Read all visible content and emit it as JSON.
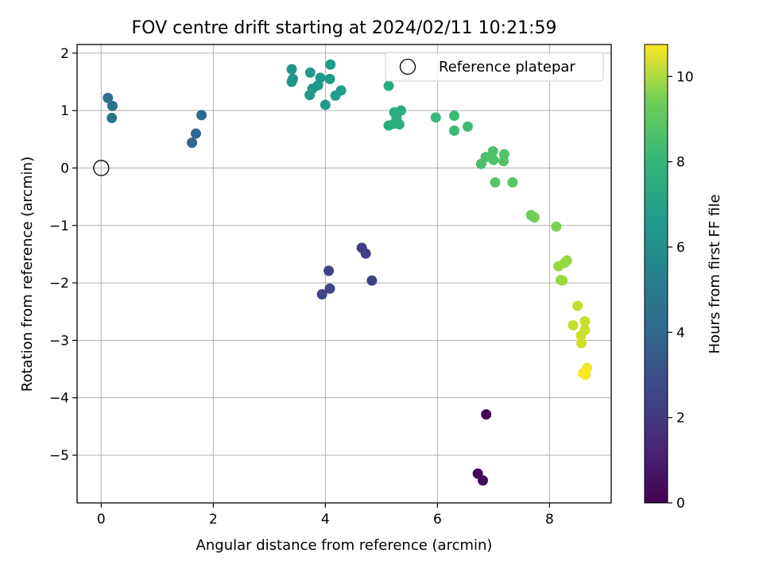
{
  "chart_data": {
    "type": "scatter",
    "title": "FOV centre drift starting at 2024/02/11 10:21:59",
    "xlabel": "Angular distance from reference (arcmin)",
    "ylabel": "Rotation from reference (arcmin)",
    "xlim": [
      -0.43,
      9.1
    ],
    "ylim": [
      -5.83,
      2.15
    ],
    "xticks": [
      0,
      2,
      4,
      6,
      8
    ],
    "yticks": [
      -5,
      -4,
      -3,
      -2,
      -1,
      0,
      1,
      2
    ],
    "x_tick_labels": [
      "0",
      "2",
      "4",
      "6",
      "8"
    ],
    "y_tick_labels": [
      "−5",
      "−4",
      "−3",
      "−2",
      "−1",
      "0",
      "1",
      "2"
    ],
    "grid": true,
    "legend": {
      "placement": "upper-right",
      "entries": [
        "Reference platepar"
      ]
    },
    "reference_point": {
      "x": 0,
      "y": 0
    },
    "colorbar": {
      "label": "Hours from first FF file",
      "colormap": "viridis",
      "range": [
        0,
        10.75
      ],
      "ticks": [
        0,
        2,
        4,
        6,
        8,
        10
      ],
      "tick_labels": [
        "0",
        "2",
        "4",
        "6",
        "8",
        "10"
      ]
    },
    "points": [
      {
        "x": 6.87,
        "y": -4.29,
        "c": 0.1
      },
      {
        "x": 6.72,
        "y": -5.32,
        "c": 0.15
      },
      {
        "x": 6.81,
        "y": -5.44,
        "c": 0.2
      },
      {
        "x": 4.65,
        "y": -1.39,
        "c": 2.0
      },
      {
        "x": 4.72,
        "y": -1.49,
        "c": 2.05
      },
      {
        "x": 4.83,
        "y": -1.96,
        "c": 2.1
      },
      {
        "x": 4.06,
        "y": -1.79,
        "c": 2.2
      },
      {
        "x": 3.94,
        "y": -2.2,
        "c": 2.25
      },
      {
        "x": 4.08,
        "y": -2.1,
        "c": 2.3
      },
      {
        "x": 1.62,
        "y": 0.44,
        "c": 3.5
      },
      {
        "x": 1.69,
        "y": 0.6,
        "c": 3.55
      },
      {
        "x": 1.79,
        "y": 0.92,
        "c": 3.6
      },
      {
        "x": 0.12,
        "y": 1.22,
        "c": 4.0
      },
      {
        "x": 0.2,
        "y": 1.08,
        "c": 4.05
      },
      {
        "x": 0.19,
        "y": 0.87,
        "c": 4.1
      },
      {
        "x": 3.4,
        "y": 1.72,
        "c": 5.6
      },
      {
        "x": 3.42,
        "y": 1.55,
        "c": 5.6
      },
      {
        "x": 3.4,
        "y": 1.5,
        "c": 5.65
      },
      {
        "x": 3.73,
        "y": 1.66,
        "c": 5.7
      },
      {
        "x": 3.77,
        "y": 1.38,
        "c": 5.7
      },
      {
        "x": 3.72,
        "y": 1.27,
        "c": 5.75
      },
      {
        "x": 3.87,
        "y": 1.44,
        "c": 5.8
      },
      {
        "x": 3.91,
        "y": 1.57,
        "c": 5.8
      },
      {
        "x": 4.09,
        "y": 1.8,
        "c": 5.9
      },
      {
        "x": 4.08,
        "y": 1.55,
        "c": 5.9
      },
      {
        "x": 4.0,
        "y": 1.1,
        "c": 5.95
      },
      {
        "x": 4.18,
        "y": 1.26,
        "c": 6.0
      },
      {
        "x": 4.28,
        "y": 1.35,
        "c": 6.05
      },
      {
        "x": 5.13,
        "y": 1.43,
        "c": 6.6
      },
      {
        "x": 5.23,
        "y": 0.97,
        "c": 6.6
      },
      {
        "x": 5.35,
        "y": 1.0,
        "c": 6.65
      },
      {
        "x": 5.13,
        "y": 0.74,
        "c": 6.7
      },
      {
        "x": 5.22,
        "y": 0.77,
        "c": 6.7
      },
      {
        "x": 5.27,
        "y": 0.88,
        "c": 6.75
      },
      {
        "x": 5.32,
        "y": 0.76,
        "c": 6.75
      },
      {
        "x": 5.97,
        "y": 0.88,
        "c": 7.2
      },
      {
        "x": 6.3,
        "y": 0.91,
        "c": 7.3
      },
      {
        "x": 6.3,
        "y": 0.65,
        "c": 7.35
      },
      {
        "x": 6.54,
        "y": 0.72,
        "c": 7.4
      },
      {
        "x": 6.78,
        "y": 0.07,
        "c": 7.6
      },
      {
        "x": 6.86,
        "y": 0.19,
        "c": 7.65
      },
      {
        "x": 6.99,
        "y": 0.29,
        "c": 7.7
      },
      {
        "x": 7.0,
        "y": 0.14,
        "c": 7.7
      },
      {
        "x": 7.19,
        "y": 0.24,
        "c": 7.8
      },
      {
        "x": 7.18,
        "y": 0.12,
        "c": 7.8
      },
      {
        "x": 7.03,
        "y": -0.25,
        "c": 7.85
      },
      {
        "x": 7.34,
        "y": -0.25,
        "c": 7.9
      },
      {
        "x": 7.67,
        "y": -0.82,
        "c": 8.3
      },
      {
        "x": 7.73,
        "y": -0.86,
        "c": 8.35
      },
      {
        "x": 8.12,
        "y": -1.02,
        "c": 8.6
      },
      {
        "x": 8.31,
        "y": -1.61,
        "c": 9.0
      },
      {
        "x": 8.27,
        "y": -1.65,
        "c": 9.0
      },
      {
        "x": 8.16,
        "y": -1.71,
        "c": 9.05
      },
      {
        "x": 8.2,
        "y": -1.95,
        "c": 9.1
      },
      {
        "x": 8.23,
        "y": -1.96,
        "c": 9.1
      },
      {
        "x": 8.5,
        "y": -2.4,
        "c": 9.7
      },
      {
        "x": 8.42,
        "y": -2.74,
        "c": 9.8
      },
      {
        "x": 8.63,
        "y": -2.67,
        "c": 9.85
      },
      {
        "x": 8.63,
        "y": -2.82,
        "c": 9.9
      },
      {
        "x": 8.56,
        "y": -2.92,
        "c": 9.95
      },
      {
        "x": 8.57,
        "y": -3.05,
        "c": 10.0
      },
      {
        "x": 8.67,
        "y": -3.48,
        "c": 10.6
      },
      {
        "x": 8.6,
        "y": -3.57,
        "c": 10.65
      },
      {
        "x": 8.64,
        "y": -3.6,
        "c": 10.7
      }
    ]
  }
}
